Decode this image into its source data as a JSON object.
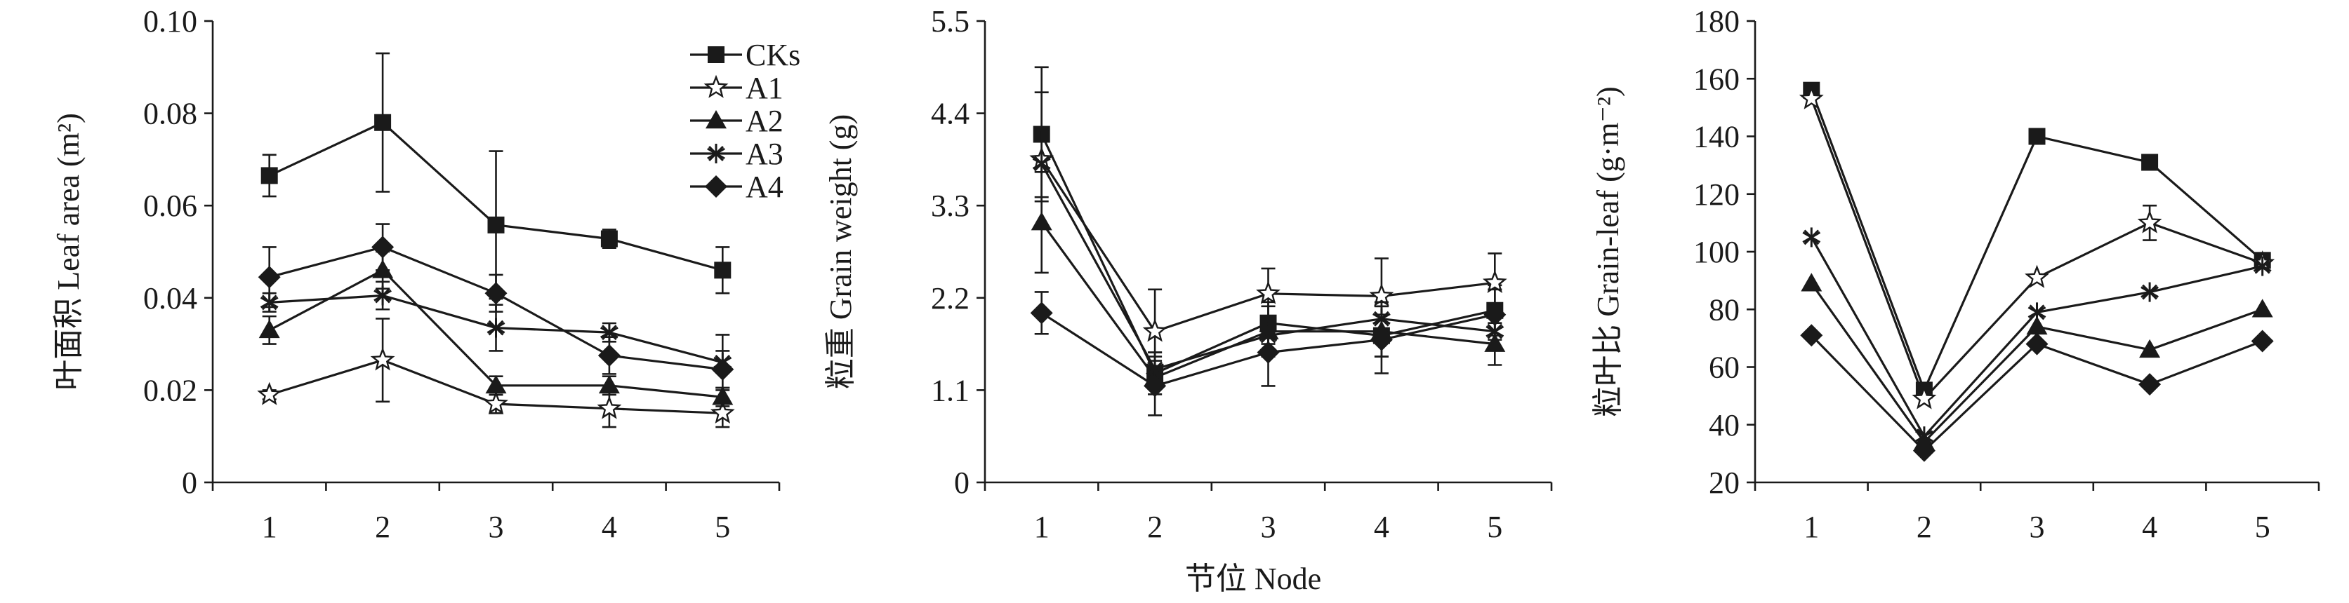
{
  "figure": {
    "xlabel": "节位 Node",
    "legend": {
      "placement": "top-right of panel 1",
      "entries": [
        {
          "name": "CKs",
          "marker": "filled-square"
        },
        {
          "name": "A1",
          "marker": "open-star"
        },
        {
          "name": "A2",
          "marker": "filled-triangle"
        },
        {
          "name": "A3",
          "marker": "asterisk"
        },
        {
          "name": "A4",
          "marker": "filled-diamond"
        }
      ]
    },
    "colors": {
      "ink": "#1a1a1a",
      "background": "#ffffff"
    }
  },
  "chart_data": [
    {
      "type": "line",
      "title": "",
      "xlabel": "",
      "ylabel": "叶面积 Leaf area (m²)",
      "x": [
        1,
        2,
        3,
        4,
        5
      ],
      "xticks": [
        "1",
        "2",
        "3",
        "4",
        "5"
      ],
      "ylim": [
        0,
        0.1
      ],
      "yticks": [
        "0",
        "0.02",
        "0.04",
        "0.06",
        "0.08",
        "0.10"
      ],
      "grid": false,
      "series": [
        {
          "name": "CKs",
          "values": [
            0.0665,
            0.078,
            0.0558,
            0.0528,
            0.046
          ],
          "err": [
            0.0045,
            0.015,
            0.016,
            0.002,
            0.005
          ]
        },
        {
          "name": "A1",
          "values": [
            0.019,
            0.0265,
            0.017,
            0.016,
            0.015
          ],
          "err": [
            0.001,
            0.009,
            0.002,
            0.004,
            0.003
          ]
        },
        {
          "name": "A2",
          "values": [
            0.033,
            0.046,
            0.021,
            0.021,
            0.0185
          ],
          "err": [
            0.003,
            0.004,
            0.002,
            0.002,
            0.002
          ]
        },
        {
          "name": "A3",
          "values": [
            0.039,
            0.0405,
            0.0335,
            0.0325,
            0.026
          ],
          "err": [
            0.002,
            0.003,
            0.005,
            0.002,
            0.006
          ]
        },
        {
          "name": "A4",
          "values": [
            0.0445,
            0.051,
            0.041,
            0.0275,
            0.0245
          ],
          "err": [
            0.0065,
            0.005,
            0.004,
            0.004,
            0.004
          ]
        }
      ]
    },
    {
      "type": "line",
      "title": "",
      "xlabel": "",
      "ylabel": "粒重 Grain weight (g)",
      "x": [
        1,
        2,
        3,
        4,
        5
      ],
      "xticks": [
        "1",
        "2",
        "3",
        "4",
        "5"
      ],
      "ylim": [
        0,
        5.5
      ],
      "yticks": [
        "0",
        "1.1",
        "2.2",
        "3.3",
        "4.4",
        "5.5"
      ],
      "grid": false,
      "series": [
        {
          "name": "CKs",
          "values": [
            4.15,
            1.3,
            1.9,
            1.75,
            2.05
          ],
          "err": [
            0.8,
            0.25,
            0.25,
            0.25,
            0.3
          ]
        },
        {
          "name": "A1",
          "values": [
            3.85,
            1.8,
            2.25,
            2.22,
            2.38
          ],
          "err": [
            0.8,
            0.5,
            0.3,
            0.45,
            0.35
          ]
        },
        {
          "name": "A2",
          "values": [
            3.1,
            1.25,
            1.8,
            1.8,
            1.65
          ],
          "err": [
            0.6,
            0.2,
            0.3,
            0.3,
            0.25
          ]
        },
        {
          "name": "A3",
          "values": [
            3.8,
            1.35,
            1.75,
            1.95,
            1.8
          ],
          "err": [
            0.4,
            0.2,
            0.2,
            0.2,
            0.2
          ]
        },
        {
          "name": "A4",
          "values": [
            2.02,
            1.15,
            1.55,
            1.7,
            2.0
          ],
          "err": [
            0.25,
            0.35,
            0.4,
            0.4,
            0.3
          ]
        }
      ]
    },
    {
      "type": "line",
      "title": "",
      "xlabel": "",
      "ylabel": "粒叶比 Grain-leaf (g·m⁻²)",
      "x": [
        1,
        2,
        3,
        4,
        5
      ],
      "xticks": [
        "1",
        "2",
        "3",
        "4",
        "5"
      ],
      "ylim": [
        20,
        180
      ],
      "yticks": [
        "20",
        "40",
        "60",
        "80",
        "100",
        "120",
        "140",
        "160",
        "180"
      ],
      "grid": false,
      "series": [
        {
          "name": "CKs",
          "values": [
            156,
            52,
            140,
            131,
            97
          ],
          "err": [
            0,
            0,
            0,
            0,
            0
          ]
        },
        {
          "name": "A1",
          "values": [
            153,
            49,
            91,
            110,
            96
          ],
          "err": [
            0,
            0,
            0,
            6,
            0
          ]
        },
        {
          "name": "A2",
          "values": [
            89,
            34,
            74,
            66,
            80
          ],
          "err": [
            0,
            0,
            0,
            0,
            0
          ]
        },
        {
          "name": "A3",
          "values": [
            105,
            36,
            79,
            86,
            95
          ],
          "err": [
            0,
            0,
            0,
            0,
            0
          ]
        },
        {
          "name": "A4",
          "values": [
            71,
            31,
            68,
            54,
            69
          ],
          "err": [
            0,
            0,
            0,
            0,
            0
          ]
        }
      ]
    }
  ]
}
